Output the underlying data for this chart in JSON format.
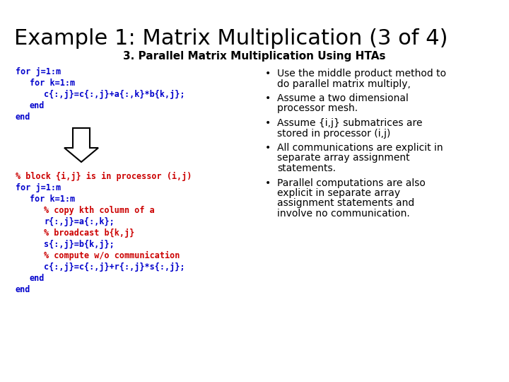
{
  "title": "Example 1: Matrix Multiplication (3 of 4)",
  "subtitle": "3. Parallel Matrix Multiplication Using HTAs",
  "bg_color": "#ffffff",
  "title_color": "#000000",
  "subtitle_color": "#000000",
  "code_blue": "#0000cc",
  "code_red": "#cc0000",
  "bullet_color": "#000000",
  "code_top": [
    {
      "text": "for j=1:m",
      "color": "#0000cc",
      "indent": 0
    },
    {
      "text": "for k=1:m",
      "color": "#0000cc",
      "indent": 1
    },
    {
      "text": "c{:,j}=c{:,j}+a{:,k}*b{k,j};",
      "color": "#0000cc",
      "indent": 2
    },
    {
      "text": "end",
      "color": "#0000cc",
      "indent": 1
    },
    {
      "text": "end",
      "color": "#0000cc",
      "indent": 0
    }
  ],
  "code_bottom": [
    {
      "text": "% block {i,j} is in processor (i,j)",
      "color": "#cc0000",
      "indent": 0
    },
    {
      "text": "for j=1:m",
      "color": "#0000cc",
      "indent": 0
    },
    {
      "text": "for k=1:m",
      "color": "#0000cc",
      "indent": 1
    },
    {
      "text": "% copy kth column of a",
      "color": "#cc0000",
      "indent": 2
    },
    {
      "text": "r{:,j}=a{:,k};",
      "color": "#0000cc",
      "indent": 2
    },
    {
      "text": "% broadcast b{k,j}",
      "color": "#cc0000",
      "indent": 2
    },
    {
      "text": "s{:,j}=b{k,j};",
      "color": "#0000cc",
      "indent": 2
    },
    {
      "text": "% compute w/o communication",
      "color": "#cc0000",
      "indent": 2
    },
    {
      "text": "c{:,j}=c{:,j}+r{:,j}*s{:,j};",
      "color": "#0000cc",
      "indent": 2
    },
    {
      "text": "end",
      "color": "#0000cc",
      "indent": 1
    },
    {
      "text": "end",
      "color": "#0000cc",
      "indent": 0
    }
  ],
  "bullets": [
    [
      "Use the middle product method to",
      "do parallel matrix multiply,"
    ],
    [
      "Assume a two dimensional",
      "processor mesh."
    ],
    [
      "Assume {i,j} submatrices are",
      "stored in processor (i,j)"
    ],
    [
      "All communications are explicit in",
      "separate array assignment",
      "statements."
    ],
    [
      "Parallel computations are also",
      "explicit in separate array",
      "assignment statements and",
      "involve no communication."
    ]
  ],
  "title_fontsize": 22,
  "subtitle_fontsize": 11,
  "code_fontsize": 8.5,
  "bullet_fontsize": 10
}
